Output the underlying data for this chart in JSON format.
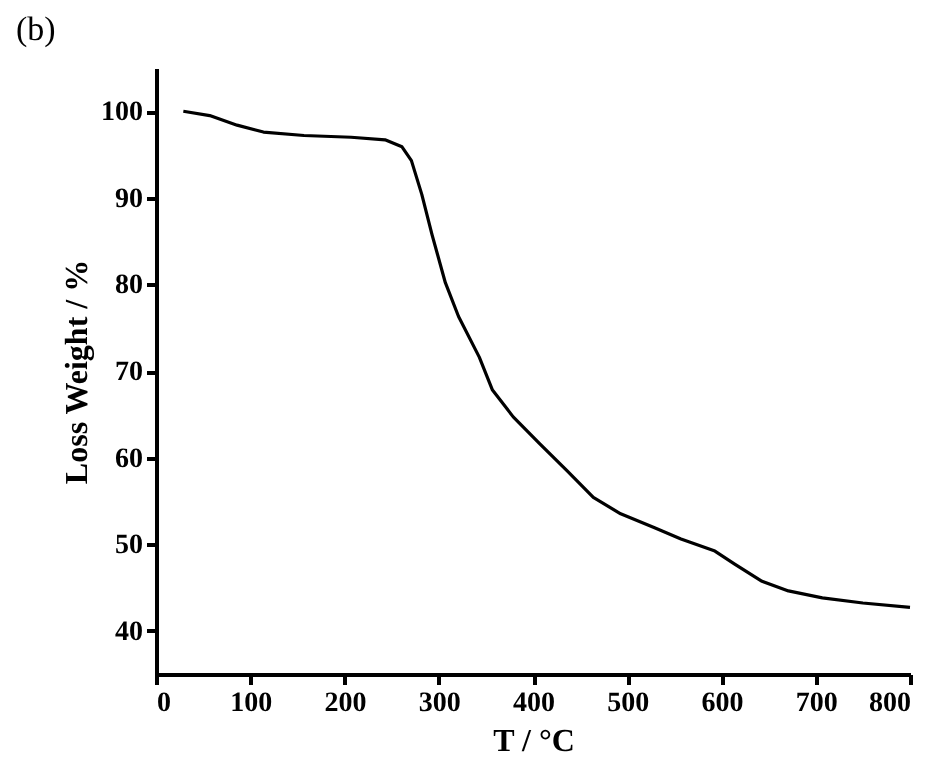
{
  "chart_data": {
    "type": "line",
    "xlabel": "T / °C",
    "ylabel": "Loss Weight / %",
    "annotations": [
      "(b)"
    ],
    "xlim": [
      0,
      800
    ],
    "xticks": [
      0,
      100,
      200,
      300,
      400,
      500,
      600,
      700,
      800
    ],
    "ylim": [
      35,
      105
    ],
    "yticks": [
      40,
      50,
      60,
      70,
      80,
      90,
      100
    ],
    "grid": false,
    "marker": "none",
    "line_style": "solid",
    "series": [
      {
        "color": "#000000",
        "x": [
          29,
          57,
          86,
          114,
          157,
          207,
          243,
          261,
          271,
          282,
          293,
          307,
          321,
          343,
          357,
          379,
          407,
          436,
          464,
          493,
          529,
          557,
          593,
          614,
          643,
          671,
          707,
          750,
          800
        ],
        "values": [
          100,
          99.5,
          98.4,
          97.6,
          97.2,
          97.0,
          96.7,
          95.9,
          94.3,
          90.4,
          85.7,
          80.2,
          76.3,
          71.6,
          67.8,
          64.7,
          61.6,
          58.5,
          55.4,
          53.5,
          51.9,
          50.6,
          49.2,
          47.7,
          45.7,
          44.6,
          43.8,
          43.2,
          42.7
        ]
      }
    ]
  }
}
